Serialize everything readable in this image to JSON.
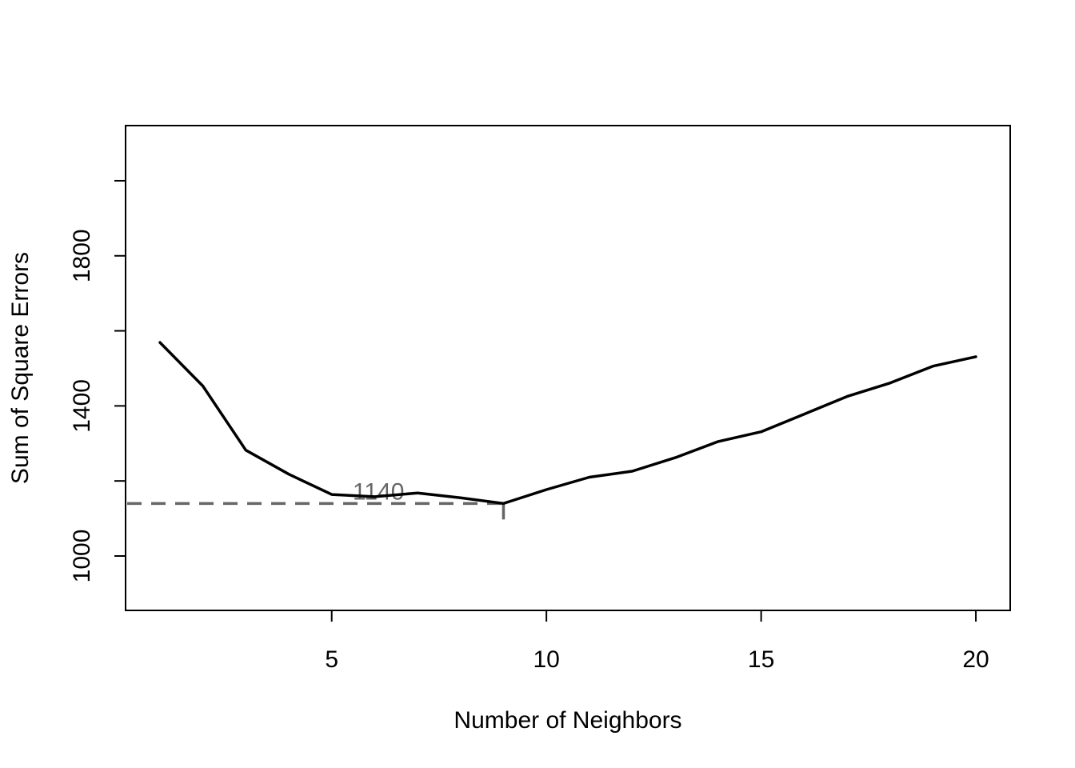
{
  "chart_data": {
    "type": "line",
    "title": "",
    "xlabel": "Number of Neighbors",
    "ylabel": "Sum of Square Errors",
    "xlim": [
      0.2,
      20.8
    ],
    "ylim": [
      855,
      2147
    ],
    "xticks": [
      5,
      10,
      15,
      20
    ],
    "yticks": [
      1000,
      1200,
      1400,
      1600,
      1800,
      2000
    ],
    "ytick_labels": [
      "1000",
      "",
      "1400",
      "",
      "1800",
      ""
    ],
    "grid": false,
    "legend": "none",
    "line_color": "#000000",
    "series": [
      {
        "x": [
          1,
          2,
          3,
          4,
          5,
          6,
          7,
          8,
          9,
          10,
          11,
          12,
          13,
          14,
          15,
          16,
          17,
          18,
          19,
          20
        ],
        "values": [
          1569,
          1453,
          1282,
          1218,
          1164,
          1158,
          1168,
          1155,
          1140,
          1177,
          1210,
          1226,
          1262,
          1305,
          1331,
          1378,
          1425,
          1461,
          1506,
          1531
        ]
      }
    ],
    "annotations": [
      {
        "text": "1140",
        "x": 9,
        "y": 1140,
        "color": "#666666",
        "style": "dashed reference to minimum"
      }
    ]
  }
}
